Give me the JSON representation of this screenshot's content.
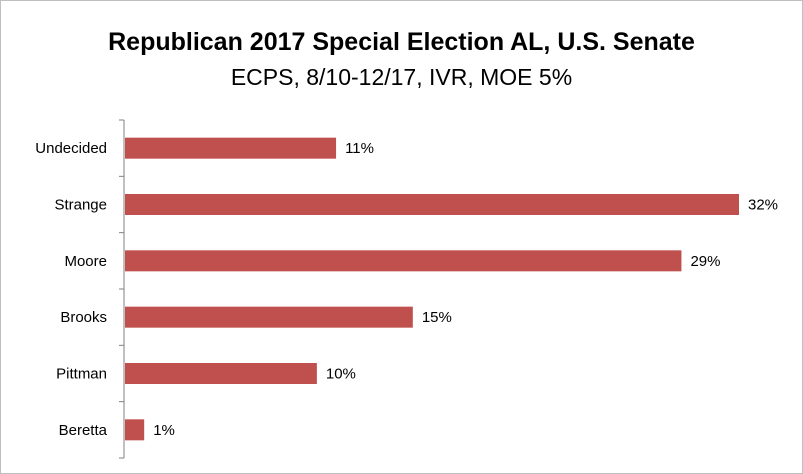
{
  "chart_data": {
    "type": "bar",
    "orientation": "horizontal",
    "title": "Republican 2017 Special Election  AL, U.S. Senate",
    "subtitle": "ECPS, 8/10-12/17, IVR, MOE 5%",
    "categories": [
      "Undecided",
      "Strange",
      "Moore",
      "Brooks",
      "Pittman",
      "Beretta"
    ],
    "values": [
      11,
      32,
      29,
      15,
      10,
      1
    ],
    "data_labels": [
      "11%",
      "32%",
      "29%",
      "15%",
      "10%",
      "1%"
    ],
    "xlim": [
      0,
      32
    ],
    "grid": false,
    "legend": "none",
    "bar_color": "#c0504d"
  }
}
